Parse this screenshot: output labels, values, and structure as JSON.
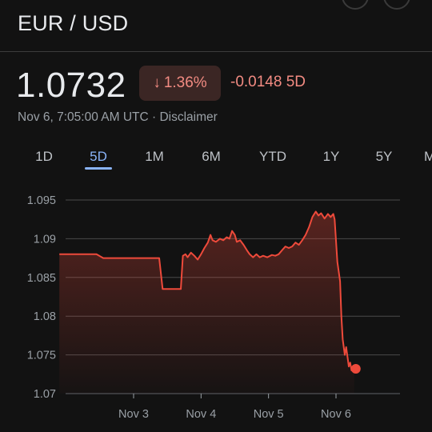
{
  "header": {
    "pair": "EUR / USD"
  },
  "quote": {
    "price": "1.0732",
    "change_pct": "1.36%",
    "change_direction_icon": "arrow-down-icon",
    "change_abs": "-0.0148 5D",
    "timestamp": "Nov 6, 7:05:00 AM UTC",
    "separator": " · ",
    "disclaimer": "Disclaimer"
  },
  "tabs": [
    {
      "label": "1D",
      "active": false
    },
    {
      "label": "5D",
      "active": true
    },
    {
      "label": "1M",
      "active": false
    },
    {
      "label": "6M",
      "active": false
    },
    {
      "label": "YTD",
      "active": false
    },
    {
      "label": "1Y",
      "active": false
    },
    {
      "label": "5Y",
      "active": false
    },
    {
      "label": "M",
      "active": false
    }
  ],
  "colors": {
    "background": "#121212",
    "line": "#ee4a3b",
    "positive_text": "#f28b82",
    "active_tab": "#8ab4f8"
  },
  "chart_data": {
    "type": "line",
    "yticks": [
      "1.095",
      "1.09",
      "1.085",
      "1.08",
      "1.075",
      "1.07"
    ],
    "ylim": [
      1.07,
      1.096
    ],
    "xticks": [
      {
        "label": "Nov 3",
        "x": 1.0
      },
      {
        "label": "Nov 4",
        "x": 2.0
      },
      {
        "label": "Nov 5",
        "x": 3.0
      },
      {
        "label": "Nov 6",
        "x": 4.0
      }
    ],
    "xlim": [
      0.0,
      5.0
    ],
    "grid": true,
    "series": [
      {
        "points": [
          [
            -0.1,
            1.088
          ],
          [
            0.2,
            1.088
          ],
          [
            0.45,
            1.088
          ],
          [
            0.55,
            1.0875
          ],
          [
            0.8,
            1.0875
          ],
          [
            1.0,
            1.0875
          ],
          [
            1.2,
            1.0875
          ],
          [
            1.38,
            1.0875
          ],
          [
            1.43,
            1.0835
          ],
          [
            1.58,
            1.0835
          ],
          [
            1.7,
            1.0835
          ],
          [
            1.73,
            1.0878
          ],
          [
            1.77,
            1.088
          ],
          [
            1.8,
            1.0876
          ],
          [
            1.85,
            1.0882
          ],
          [
            1.9,
            1.0878
          ],
          [
            1.95,
            1.0873
          ],
          [
            2.0,
            1.088
          ],
          [
            2.05,
            1.0888
          ],
          [
            2.1,
            1.0895
          ],
          [
            2.14,
            1.0905
          ],
          [
            2.17,
            1.0898
          ],
          [
            2.22,
            1.0896
          ],
          [
            2.28,
            1.09
          ],
          [
            2.33,
            1.0898
          ],
          [
            2.38,
            1.0902
          ],
          [
            2.42,
            1.09
          ],
          [
            2.46,
            1.091
          ],
          [
            2.5,
            1.0905
          ],
          [
            2.53,
            1.0896
          ],
          [
            2.58,
            1.0898
          ],
          [
            2.63,
            1.0892
          ],
          [
            2.68,
            1.0885
          ],
          [
            2.72,
            1.088
          ],
          [
            2.77,
            1.0876
          ],
          [
            2.82,
            1.088
          ],
          [
            2.87,
            1.0876
          ],
          [
            2.92,
            1.0878
          ],
          [
            2.98,
            1.0876
          ],
          [
            3.05,
            1.0879
          ],
          [
            3.1,
            1.0878
          ],
          [
            3.15,
            1.088
          ],
          [
            3.2,
            1.0885
          ],
          [
            3.25,
            1.089
          ],
          [
            3.3,
            1.0888
          ],
          [
            3.35,
            1.089
          ],
          [
            3.4,
            1.0895
          ],
          [
            3.45,
            1.0892
          ],
          [
            3.5,
            1.0898
          ],
          [
            3.55,
            1.0905
          ],
          [
            3.6,
            1.0915
          ],
          [
            3.65,
            1.0928
          ],
          [
            3.7,
            1.0935
          ],
          [
            3.74,
            1.093
          ],
          [
            3.78,
            1.0933
          ],
          [
            3.83,
            1.0926
          ],
          [
            3.88,
            1.0932
          ],
          [
            3.92,
            1.0928
          ],
          [
            3.96,
            1.0932
          ],
          [
            3.98,
            1.0925
          ],
          [
            4.02,
            1.087
          ],
          [
            4.06,
            1.0845
          ],
          [
            4.08,
            1.08
          ],
          [
            4.1,
            1.077
          ],
          [
            4.13,
            1.075
          ],
          [
            4.15,
            1.076
          ],
          [
            4.17,
            1.0748
          ],
          [
            4.19,
            1.0735
          ],
          [
            4.21,
            1.074
          ],
          [
            4.23,
            1.073
          ],
          [
            4.25,
            1.0735
          ],
          [
            4.27,
            1.0732
          ]
        ]
      }
    ]
  }
}
